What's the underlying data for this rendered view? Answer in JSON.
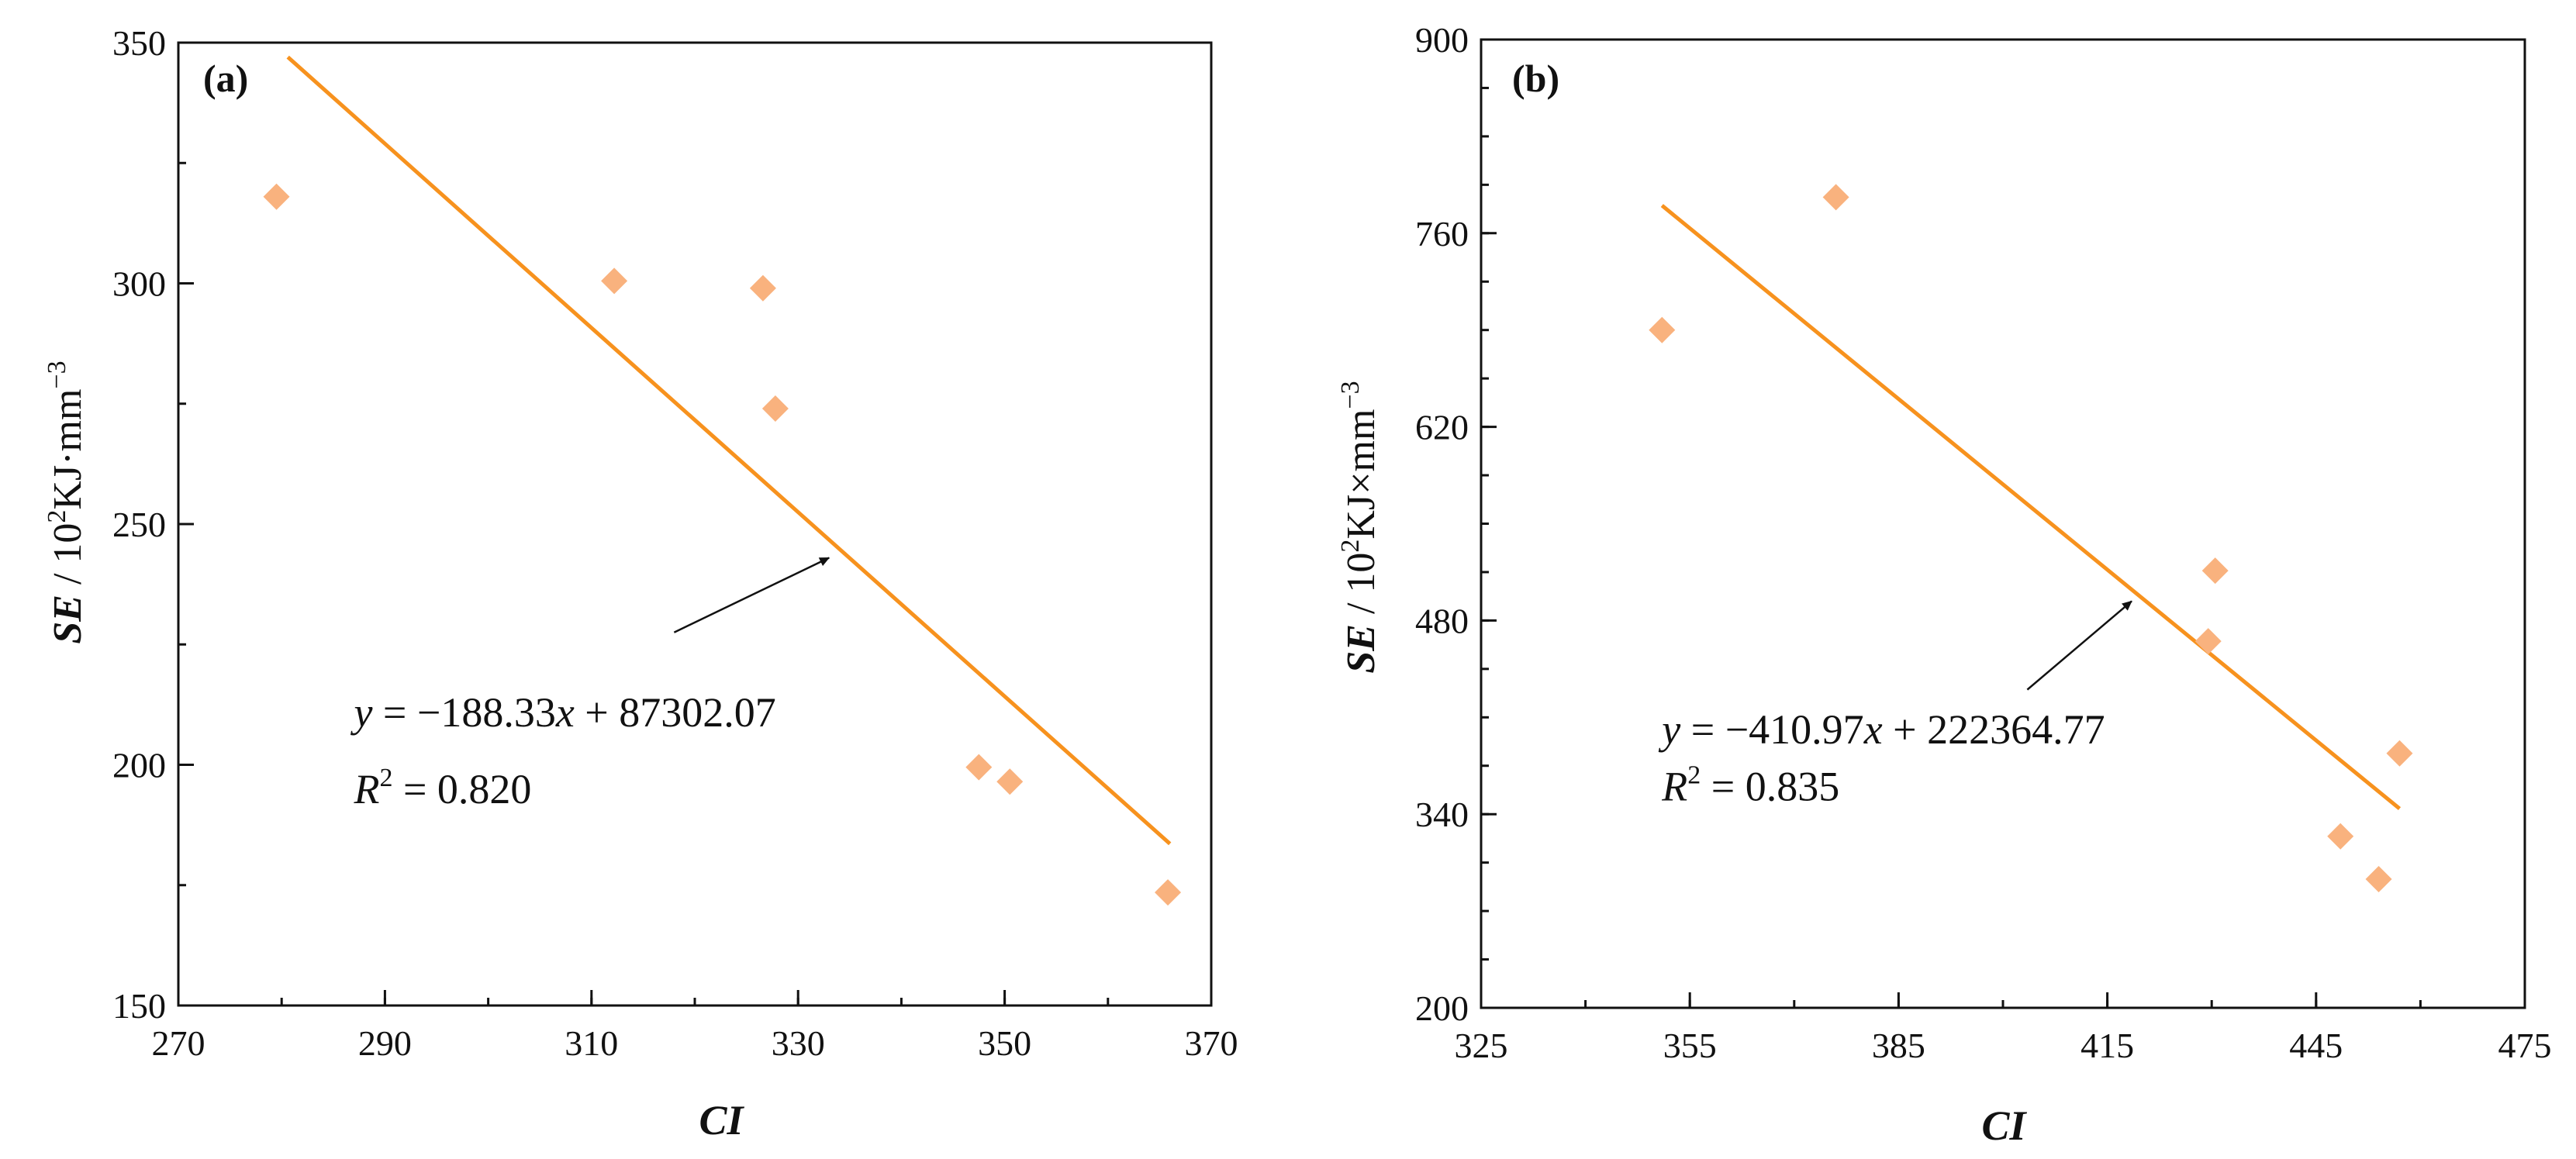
{
  "colors": {
    "line": "#F7921E",
    "point": "#F9B27E",
    "axis": "#111111",
    "arrow": "#111111"
  },
  "chart_data": [
    {
      "type": "scatter",
      "panel_label": "(a)",
      "xlabel": "CI",
      "ylabel": {
        "bold": "SE",
        "unit_prefix": " / 10",
        "exp": "2",
        "unit_mid": "KJ·mm",
        "unit_exp": "−3"
      },
      "xlim": [
        270,
        370
      ],
      "ylim": [
        150,
        350
      ],
      "xticks": [
        270,
        290,
        310,
        330,
        350,
        370
      ],
      "yticks": [
        150,
        200,
        250,
        300,
        350
      ],
      "x_minor_step": 10,
      "y_minor_step": 25,
      "points": [
        {
          "x": 279.5,
          "y": 318
        },
        {
          "x": 312.2,
          "y": 300.5
        },
        {
          "x": 326.6,
          "y": 299
        },
        {
          "x": 327.8,
          "y": 274
        },
        {
          "x": 347.5,
          "y": 199.5
        },
        {
          "x": 350.5,
          "y": 196.5
        },
        {
          "x": 365.8,
          "y": 173.5
        }
      ],
      "fit_line": {
        "x1": 280.6,
        "y1": 347,
        "x2": 366,
        "y2": 183.6
      },
      "equation": {
        "lhs": "y",
        "rhs": " = −188.33",
        "var": "x",
        "tail": " + 87302.07"
      },
      "r2": {
        "sym": "R",
        "exp": "2",
        "value": " = 0.820"
      },
      "arrow": {
        "from_x": 318,
        "from_y": 227.5,
        "to_x": 333,
        "to_y": 243
      },
      "eq_anchor": {
        "x": 287,
        "y": 208
      },
      "r2_anchor": {
        "x": 287,
        "y": 192
      }
    },
    {
      "type": "scatter",
      "panel_label": "(b)",
      "xlabel": "CI",
      "ylabel": {
        "bold": "SE",
        "unit_prefix": " / 10",
        "exp": "2",
        "unit_mid": "KJ×mm",
        "unit_exp": "−3"
      },
      "xlim": [
        325,
        475
      ],
      "ylim": [
        200,
        900
      ],
      "xticks": [
        325,
        355,
        385,
        415,
        445,
        475
      ],
      "yticks": [
        200,
        340,
        480,
        620,
        760,
        900
      ],
      "x_minor_step": 15,
      "y_minor_step": 35,
      "points": [
        {
          "x": 351,
          "y": 690
        },
        {
          "x": 376,
          "y": 786
        },
        {
          "x": 430.5,
          "y": 516
        },
        {
          "x": 429.5,
          "y": 465
        },
        {
          "x": 457,
          "y": 384
        },
        {
          "x": 448.5,
          "y": 324
        },
        {
          "x": 454,
          "y": 293
        }
      ],
      "fit_line": {
        "x1": 351,
        "y1": 780,
        "x2": 457,
        "y2": 344
      },
      "equation": {
        "lhs": "y",
        "rhs": " = −410.97",
        "var": "x",
        "tail": " + 222364.77"
      },
      "r2": {
        "sym": "R",
        "exp": "2",
        "value": " = 0.835"
      },
      "arrow": {
        "from_x": 403.5,
        "from_y": 430,
        "to_x": 418.5,
        "to_y": 494
      },
      "eq_anchor": {
        "x": 351,
        "y": 391
      },
      "r2_anchor": {
        "x": 351,
        "y": 350
      }
    }
  ]
}
